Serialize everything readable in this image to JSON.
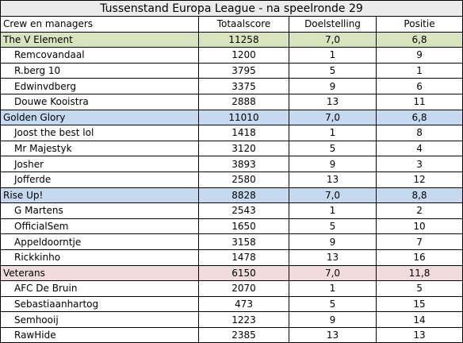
{
  "title": "Tussenstand Europa League  - na speelronde 29",
  "headers": [
    "Crew en managers",
    "Totaalscore",
    "Doelstelling",
    "Positie"
  ],
  "teams": [
    {
      "name": "The V Element",
      "score": "11258",
      "target": "7,0",
      "position": "6,8",
      "color": "#d8e4bc",
      "members": [
        {
          "name": "Remcovandaal",
          "score": "1200",
          "target": "1",
          "position": "9"
        },
        {
          "name": "R.berg 10",
          "score": "3795",
          "target": "5",
          "position": "1"
        },
        {
          "name": "Edwinvdberg",
          "score": "3375",
          "target": "9",
          "position": "6"
        },
        {
          "name": "Douwe Kooistra",
          "score": "2888",
          "target": "13",
          "position": "11"
        }
      ]
    },
    {
      "name": "Golden Glory",
      "score": "11010",
      "target": "7,0",
      "position": "6,8",
      "color": "#c5d9f1",
      "members": [
        {
          "name": "Joost the best lol",
          "score": "1418",
          "target": "1",
          "position": "8"
        },
        {
          "name": "Mr Majestyk",
          "score": "3120",
          "target": "5",
          "position": "4"
        },
        {
          "name": "Josher",
          "score": "3893",
          "target": "9",
          "position": "3"
        },
        {
          "name": "Jofferde",
          "score": "2580",
          "target": "13",
          "position": "12"
        }
      ]
    },
    {
      "name": "Rise Up!",
      "score": "8828",
      "target": "7,0",
      "position": "8,8",
      "color": "#c5d9f1",
      "members": [
        {
          "name": "G Martens",
          "score": "2543",
          "target": "1",
          "position": "2"
        },
        {
          "name": "OfficialSem",
          "score": "1650",
          "target": "5",
          "position": "10"
        },
        {
          "name": "Appeldoorntje",
          "score": "3158",
          "target": "9",
          "position": "7"
        },
        {
          "name": "Rickkinho",
          "score": "1478",
          "target": "13",
          "position": "16"
        }
      ]
    },
    {
      "name": "Veterans",
      "score": "6150",
      "target": "7,0",
      "position": "11,8",
      "color": "#f2dcdb",
      "members": [
        {
          "name": "AFC De Bruin",
          "score": "2070",
          "target": "1",
          "position": "5"
        },
        {
          "name": "Sebastiaanhartog",
          "score": "473",
          "target": "5",
          "position": "15"
        },
        {
          "name": "Semhooij",
          "score": "1223",
          "target": "9",
          "position": "14"
        },
        {
          "name": "RawHide",
          "score": "2385",
          "target": "13",
          "position": "13"
        }
      ]
    }
  ]
}
